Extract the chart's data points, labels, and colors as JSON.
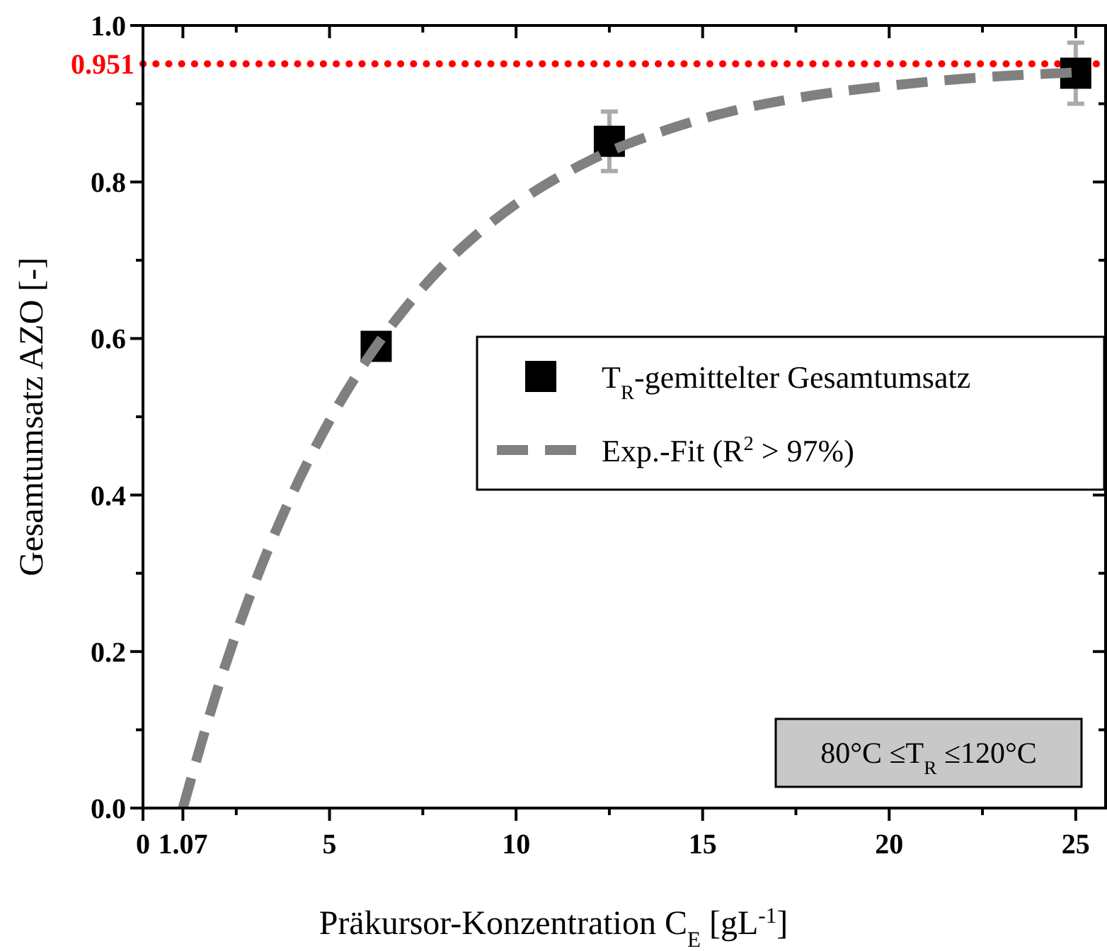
{
  "chart_data": {
    "type": "scatter",
    "xlabel": "Präkursor-Konzentration C$_{E}$ [gL$^{-1}$]",
    "ylabel": "Gesamtumsatz AZO [-]",
    "xlim": [
      0,
      25.8
    ],
    "ylim": [
      0,
      1
    ],
    "xticks": [
      0,
      {
        "value": 1.07,
        "label": "1.07"
      },
      {
        "value": 2.5,
        "label": null
      },
      5,
      {
        "value": 7.5,
        "label": null
      },
      10,
      {
        "value": 12.5,
        "label": null
      },
      15,
      {
        "value": 17.5,
        "label": null
      },
      20,
      {
        "value": 22.5,
        "label": null
      },
      25
    ],
    "yticks": [
      {
        "value": 0,
        "label": "0.0"
      },
      {
        "value": 0.1,
        "label": null
      },
      0.2,
      {
        "value": 0.3,
        "label": null
      },
      0.4,
      {
        "value": 0.5,
        "label": null
      },
      0.6,
      {
        "value": 0.7,
        "label": null
      },
      0.8,
      {
        "value": 0.9,
        "label": null
      },
      {
        "value": 1,
        "label": "1.0"
      }
    ],
    "grid": false,
    "legend": "right",
    "series": [
      {
        "name": "T$_{R}$-gemittelter Gesamtumsatz",
        "type": "scatter",
        "marker": "square",
        "color": "#000000",
        "x": [
          6.25,
          12.5,
          25
        ],
        "values": [
          0.59,
          0.852,
          0.939
        ],
        "errors": [
          0.01,
          0.038,
          0.039
        ]
      },
      {
        "name": "Exp.-Fit (R$^{2}$ > 97%)",
        "type": "line",
        "marker": "none",
        "line_style": "dashed",
        "color": "#808080",
        "x": [
          1.07,
          2,
          3,
          4,
          5,
          6,
          7,
          8,
          9,
          10,
          12,
          14,
          16,
          18,
          20,
          22,
          25
        ],
        "values": [
          0,
          0.152,
          0.288,
          0.401,
          0.495,
          0.573,
          0.637,
          0.691,
          0.735,
          0.772,
          0.828,
          0.866,
          0.893,
          0.911,
          0.923,
          0.932,
          0.94
        ]
      }
    ],
    "ref_lines": [
      {
        "axis": "y",
        "value": 0.951,
        "label": "0.951",
        "color": "#ff0000",
        "line_style": "dotted"
      }
    ],
    "annotations": [
      "80°C ≤T$_{R}$ ≤120°C"
    ]
  }
}
